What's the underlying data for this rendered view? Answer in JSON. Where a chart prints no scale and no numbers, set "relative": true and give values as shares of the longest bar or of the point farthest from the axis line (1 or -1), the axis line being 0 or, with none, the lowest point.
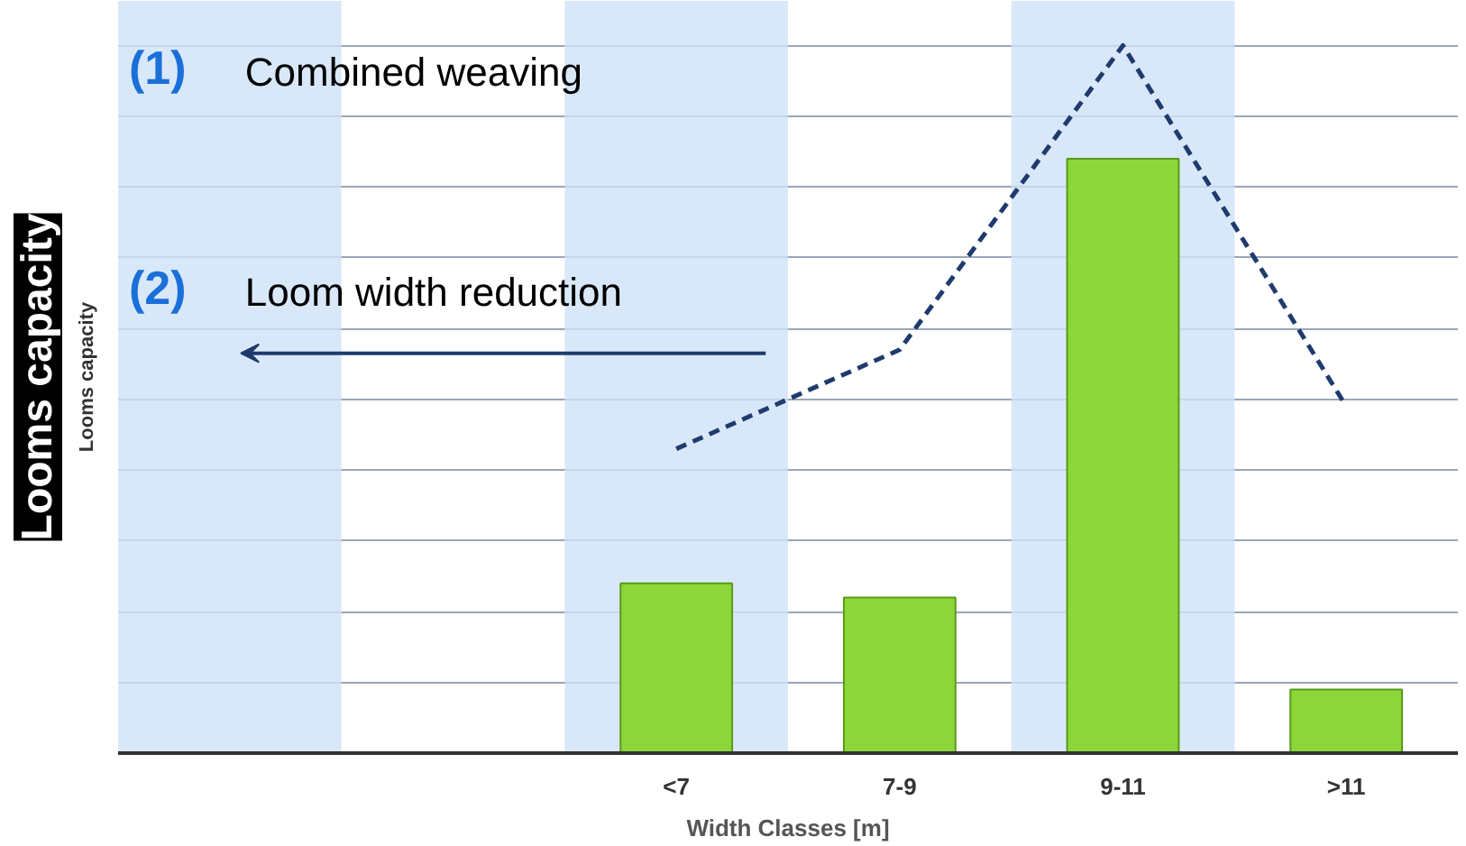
{
  "chart_data": {
    "type": "bar",
    "relative": true,
    "categories": [
      null,
      null,
      "<7",
      "7-9",
      "9-11",
      ">11"
    ],
    "xlabel": "Width Classes [m]",
    "ylabel": "Looms capacity",
    "title": "Looms capacity",
    "series": [
      {
        "color": "#8cd63a",
        "values": [
          null,
          null,
          0.24,
          0.22,
          0.84,
          0.09
        ]
      },
      {
        "type": "line",
        "color": "#1f3b6e",
        "line_style": "dashed",
        "marker": "none",
        "values": [
          null,
          null,
          0.43,
          0.57,
          1.0,
          0.49
        ]
      }
    ],
    "annotations": [
      "(1)",
      "Combined weaving",
      "(2)",
      "Loom width reduction"
    ],
    "grid": "y"
  }
}
